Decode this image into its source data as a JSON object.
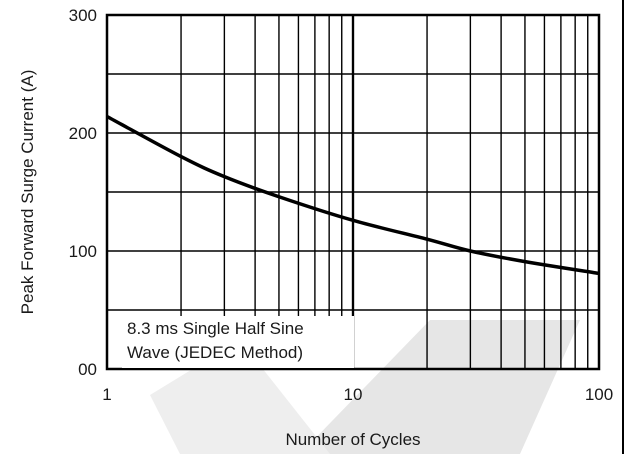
{
  "chart_data": {
    "type": "line",
    "title": "",
    "xlabel": "Number of Cycles",
    "ylabel": "Peak Forward Surge Current (A)",
    "xscale": "log",
    "xlim": [
      1,
      100
    ],
    "ylim": [
      0,
      300
    ],
    "x_ticks": [
      {
        "value": 1,
        "label": "1"
      },
      {
        "value": 10,
        "label": "10"
      },
      {
        "value": 100,
        "label": "100"
      }
    ],
    "y_ticks": [
      {
        "value": 0,
        "label": "00"
      },
      {
        "value": 100,
        "label": "100"
      },
      {
        "value": 200,
        "label": "200"
      },
      {
        "value": 300,
        "label": "300"
      }
    ],
    "grid": true,
    "series": [
      {
        "name": "",
        "color": "#000000",
        "x": [
          1,
          2,
          3,
          5,
          10,
          20,
          30,
          50,
          100
        ],
        "y": [
          214,
          180,
          163,
          146,
          126,
          110,
          100,
          91,
          81
        ]
      }
    ],
    "annotations": [
      "8.3 ms Single Half Sine",
      "Wave (JEDEC Method)"
    ]
  },
  "colors": {
    "line": "#000000",
    "grid": "#000000",
    "watermark": "#e4e4e4"
  }
}
